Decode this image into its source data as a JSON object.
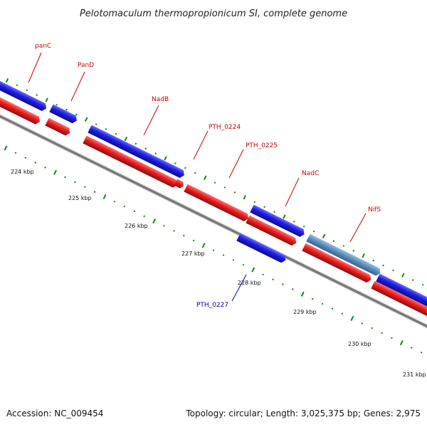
{
  "title": "Pelotomaculum thermopropionicum SI, complete genome",
  "footer": {
    "accession": "Accession: NC_009454",
    "topology": "Topology: circular; Length: 3,025,375 bp; Genes: 2,975"
  },
  "colors": {
    "forward_strand": "#1c1ce0",
    "reverse_strand": "#e81c1c",
    "highlight_gene": "#5b8fbf",
    "backbone": "#8a8a8a",
    "tick": "#0a8a0a",
    "label_red": "#cc0000",
    "label_blue": "#0000aa"
  },
  "tick_labels": [
    "224 kbp",
    "225 kbp",
    "226 kbp",
    "227 kbp",
    "228 kbp",
    "229 kbp",
    "230 kbp",
    "231 kbp"
  ],
  "genes": [
    {
      "name": "panC",
      "label_color": "red"
    },
    {
      "name": "PanD",
      "label_color": "red"
    },
    {
      "name": "NadB",
      "label_color": "red"
    },
    {
      "name": "PTH_0224",
      "label_color": "red"
    },
    {
      "name": "PTH_0225",
      "label_color": "red"
    },
    {
      "name": "NadC",
      "label_color": "red"
    },
    {
      "name": "NifS",
      "label_color": "red"
    },
    {
      "name": "PTH_0227",
      "label_color": "blue"
    }
  ]
}
